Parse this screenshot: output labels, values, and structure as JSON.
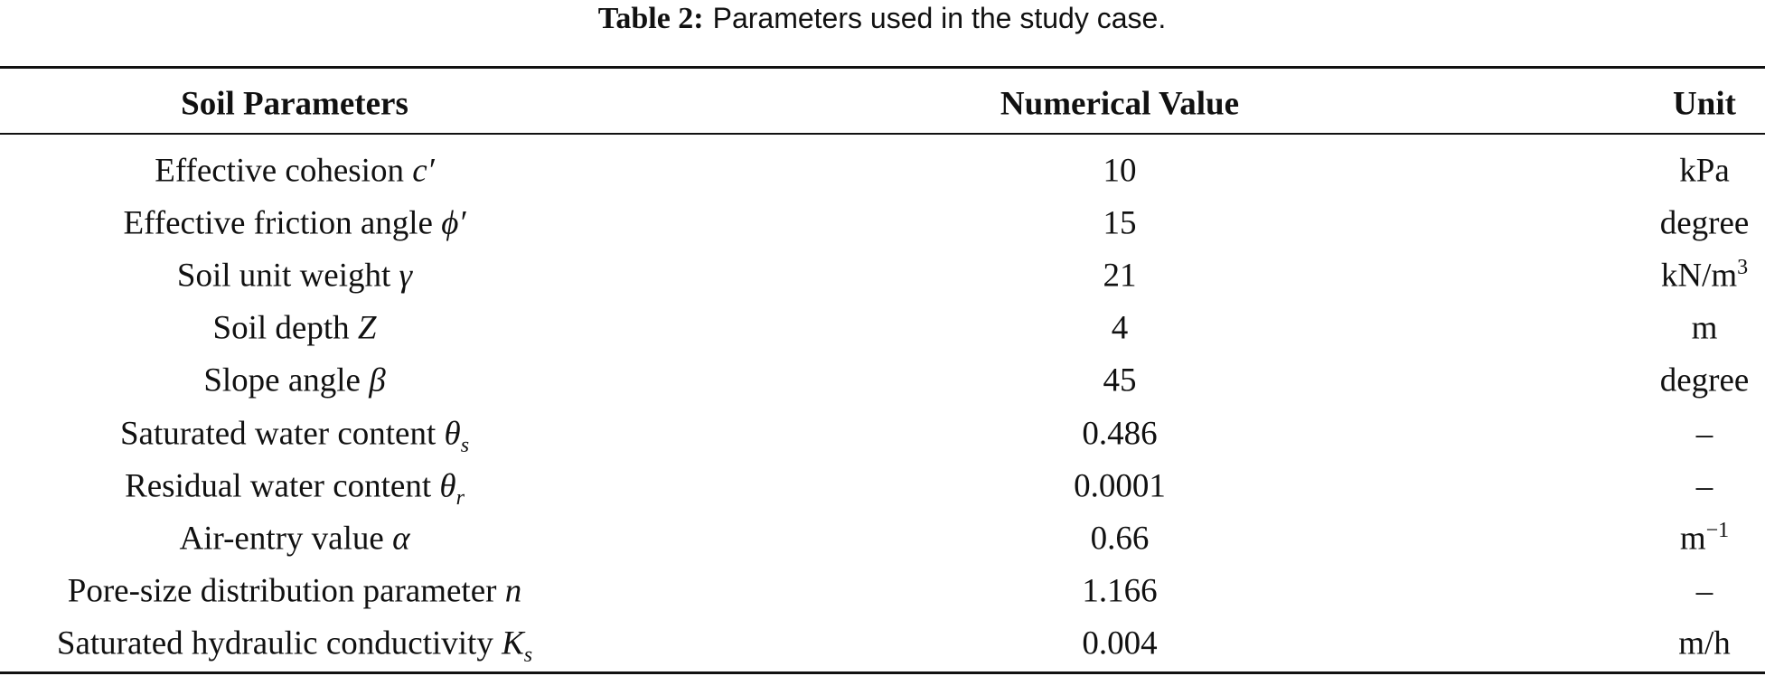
{
  "caption": {
    "label": "Table 2:",
    "text": "Parameters used in the study case."
  },
  "table": {
    "headers": [
      "Soil Parameters",
      "Numerical Value",
      "Unit"
    ],
    "rows": [
      {
        "parameter": "Effective cohesion",
        "symbol": "c′",
        "value": 10,
        "unit": "kPa"
      },
      {
        "parameter": "Effective friction angle",
        "symbol": "ϕ′",
        "value": 15,
        "unit": "degree"
      },
      {
        "parameter": "Soil unit weight",
        "symbol": "γ",
        "value": 21,
        "unit": "kN/m",
        "unit_sup": "3"
      },
      {
        "parameter": "Soil depth",
        "symbol": "Z",
        "value": 4,
        "unit": "m"
      },
      {
        "parameter": "Slope angle",
        "symbol": "β",
        "value": 45,
        "unit": "degree"
      },
      {
        "parameter": "Saturated water content",
        "symbol": "θ",
        "symbol_sub": "s",
        "value": 0.486,
        "unit": "–"
      },
      {
        "parameter": "Residual water content",
        "symbol": "θ",
        "symbol_sub": "r",
        "value": 0.0001,
        "unit": "–"
      },
      {
        "parameter": "Air-entry value",
        "symbol": "α",
        "value": 0.66,
        "unit": "m",
        "unit_sup": "−1"
      },
      {
        "parameter": "Pore-size distribution parameter",
        "symbol": "n",
        "value": 1.166,
        "unit": "–"
      },
      {
        "parameter": "Saturated hydraulic conductivity",
        "symbol": "K",
        "symbol_sub": "s",
        "value": 0.004,
        "unit": "m/h"
      }
    ]
  }
}
